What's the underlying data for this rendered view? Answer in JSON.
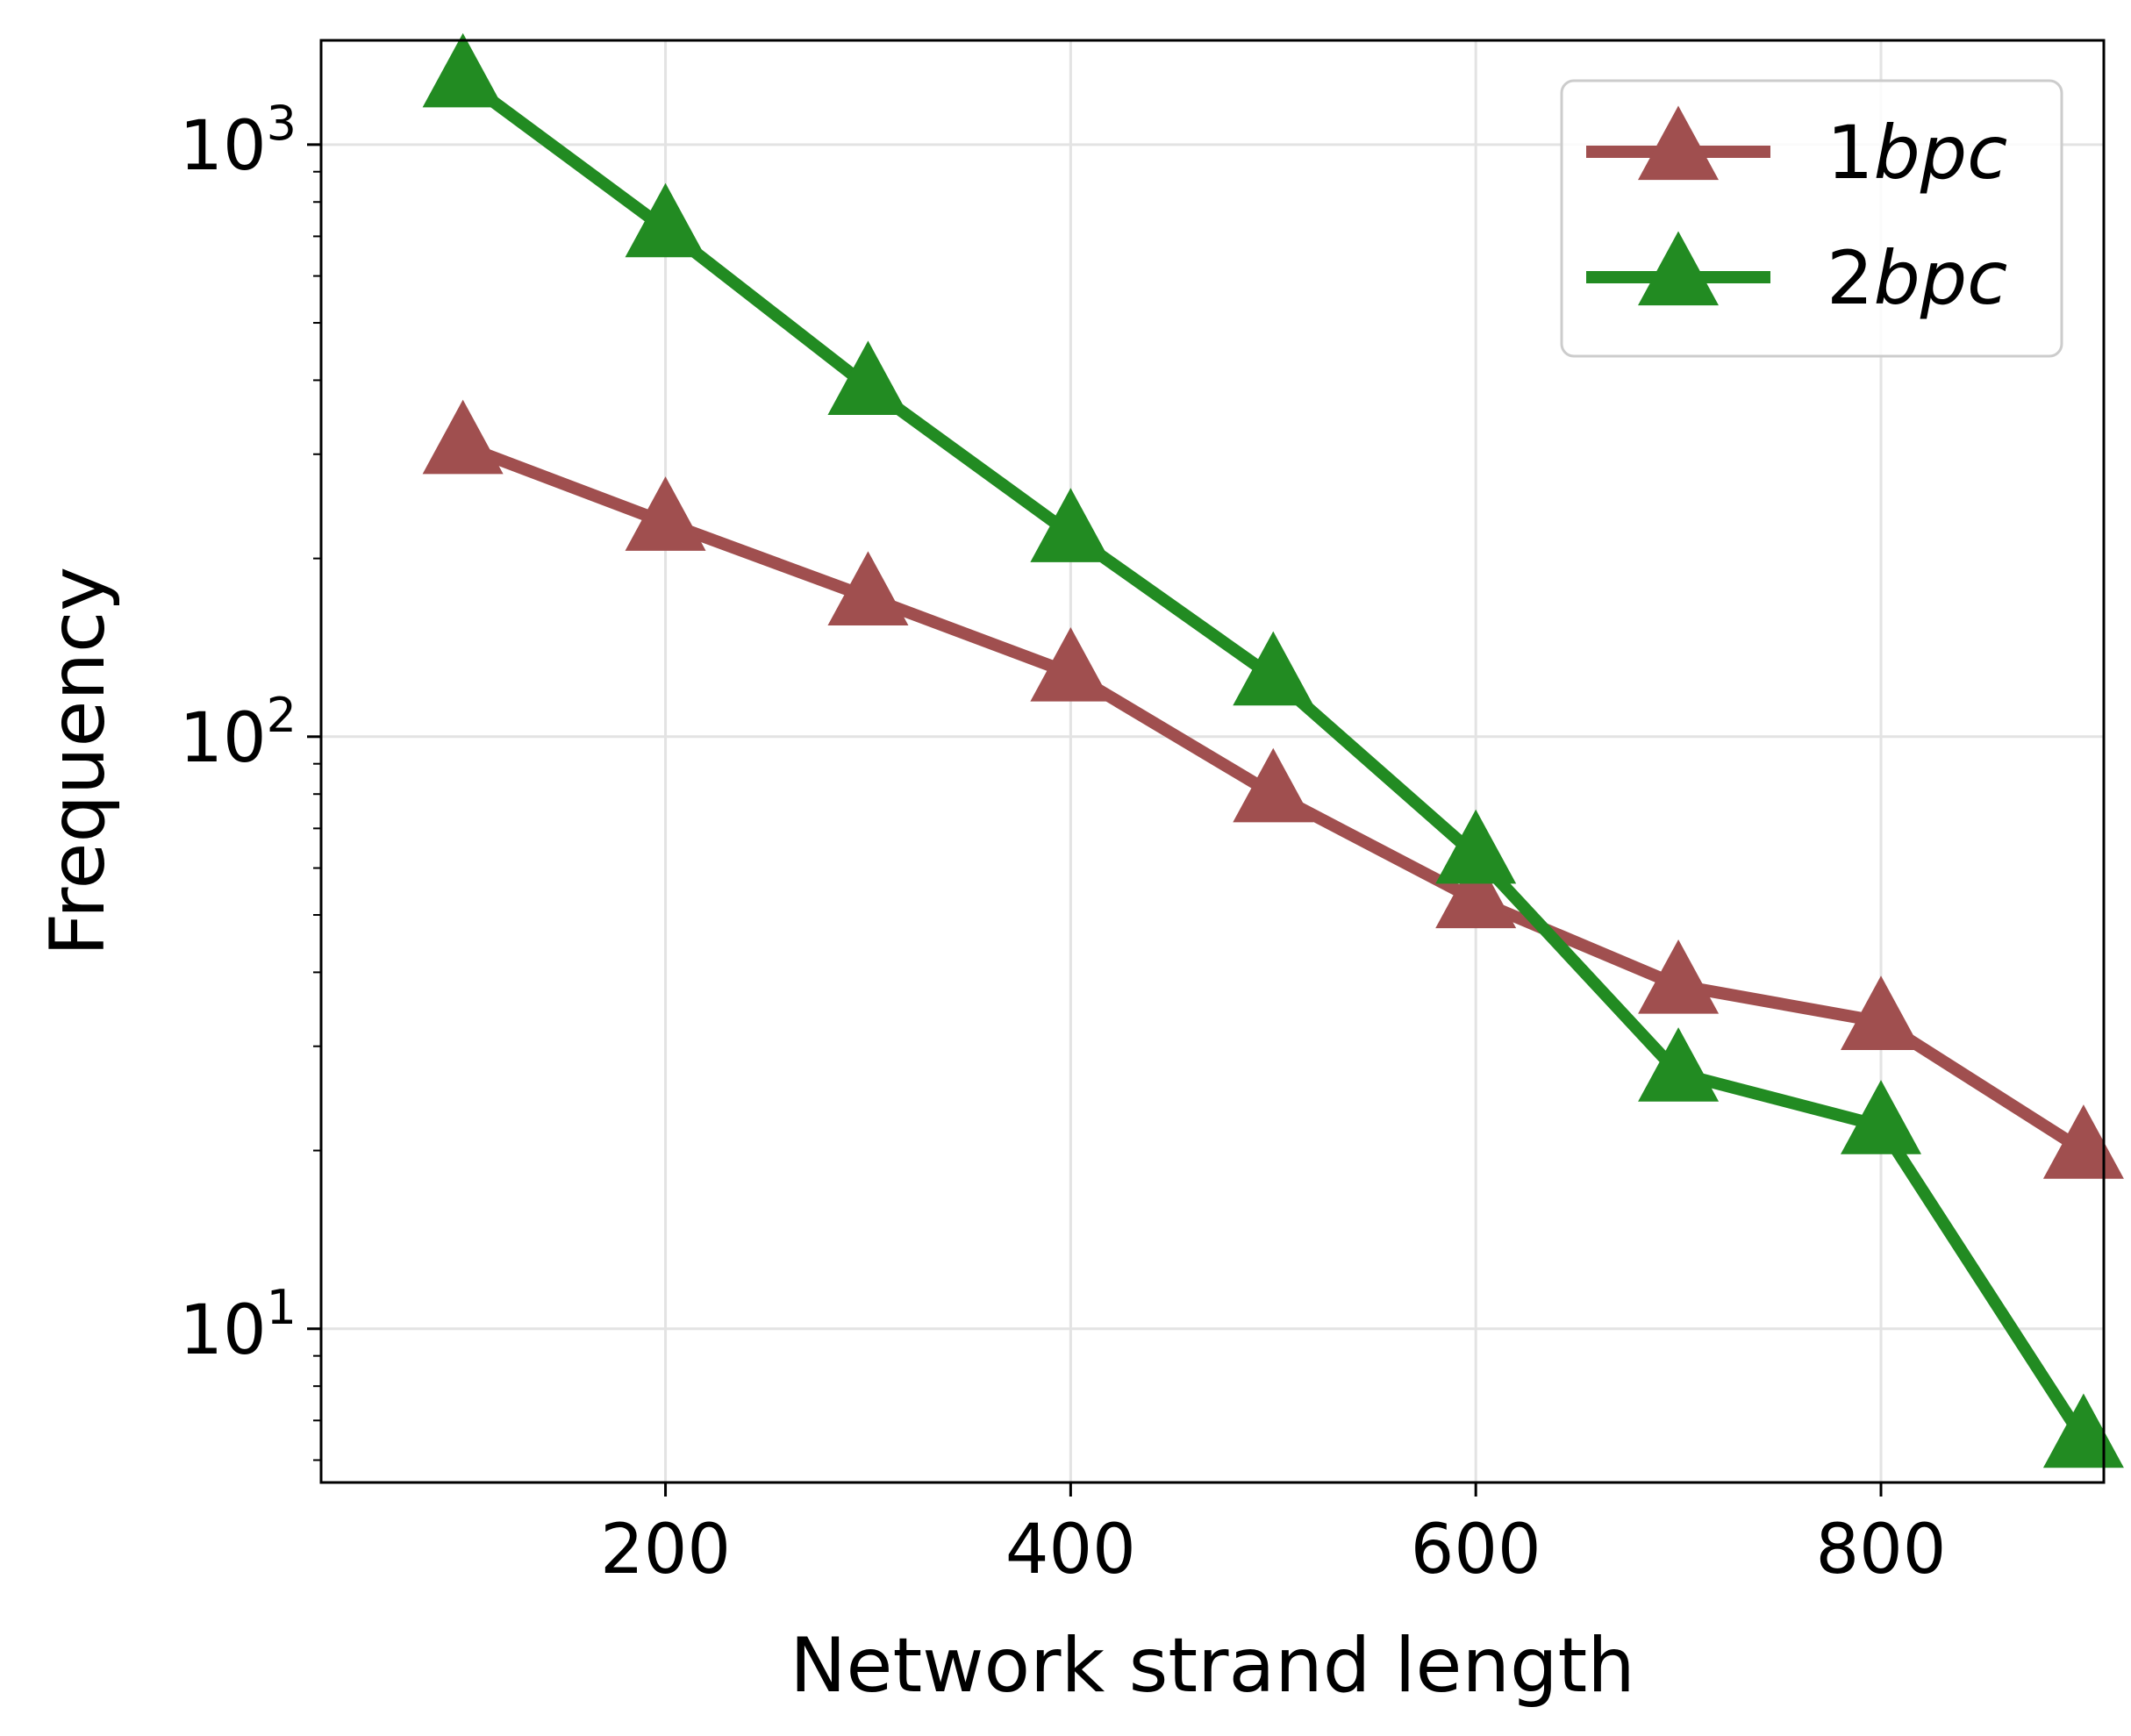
{
  "chart_data": {
    "type": "line",
    "title": "",
    "xlabel": "Network strand length",
    "ylabel": "Frequency",
    "x": [
      100,
      200,
      300,
      400,
      500,
      600,
      700,
      800,
      900
    ],
    "xlim": [
      30,
      910
    ],
    "ylim": [
      5.5,
      1500
    ],
    "yscale": "log",
    "xticks": [
      200,
      400,
      600,
      800
    ],
    "xtick_labels": [
      "200",
      "400",
      "600",
      "800"
    ],
    "yticks": [
      10,
      100,
      1000
    ],
    "ytick_labels": [
      {
        "base": "10",
        "exp": "1"
      },
      {
        "base": "10",
        "exp": "2"
      },
      {
        "base": "10",
        "exp": "3"
      }
    ],
    "grid": true,
    "legend_position": "top-right",
    "series": [
      {
        "name": "1bpc",
        "name_num": "1",
        "name_ital": "bpc",
        "color": "#a04f4f",
        "marker": "triangle-up",
        "values": [
          310,
          230,
          172,
          128,
          80,
          53,
          38,
          33,
          20
        ]
      },
      {
        "name": "2bpc",
        "name_num": "2",
        "name_ital": "bpc",
        "color": "#228b22",
        "marker": "triangle-up",
        "values": [
          1290,
          720,
          390,
          220,
          126,
          63,
          27,
          22,
          6.5
        ]
      }
    ]
  }
}
